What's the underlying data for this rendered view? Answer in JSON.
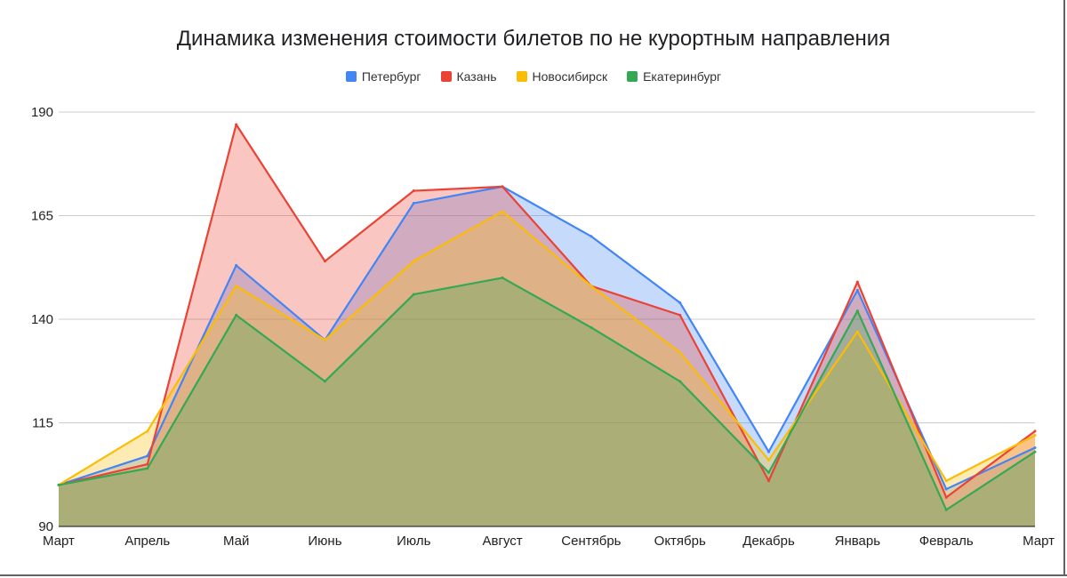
{
  "chart_data": {
    "type": "area",
    "title": "Динамика изменения стоимости билетов по не курортным направления",
    "xlabel": "",
    "ylabel": "",
    "categories": [
      "Март",
      "Апрель",
      "Май",
      "Июнь",
      "Июль",
      "Август",
      "Сентябрь",
      "Октябрь",
      "Декабрь",
      "Январь",
      "Февраль",
      "Март"
    ],
    "ylim": [
      90,
      190
    ],
    "yticks": [
      90,
      115,
      140,
      165,
      190
    ],
    "grid": true,
    "legend_position": "top",
    "series": [
      {
        "name": "Петербург",
        "color": "#4285F4",
        "values": [
          100,
          107,
          153,
          135,
          168,
          172,
          160,
          144,
          108,
          147,
          99,
          109
        ]
      },
      {
        "name": "Казань",
        "color": "#EA4335",
        "values": [
          100,
          105,
          187,
          154,
          171,
          172,
          148,
          141,
          101,
          149,
          97,
          113
        ]
      },
      {
        "name": "Новосибирск",
        "color": "#FBBC04",
        "values": [
          100,
          113,
          148,
          135,
          154,
          166,
          148,
          132,
          106,
          137,
          101,
          112
        ]
      },
      {
        "name": "Екатеринбург",
        "color": "#34A853",
        "values": [
          100,
          104,
          141,
          125,
          146,
          150,
          138,
          125,
          103,
          142,
          94,
          108
        ]
      }
    ]
  }
}
